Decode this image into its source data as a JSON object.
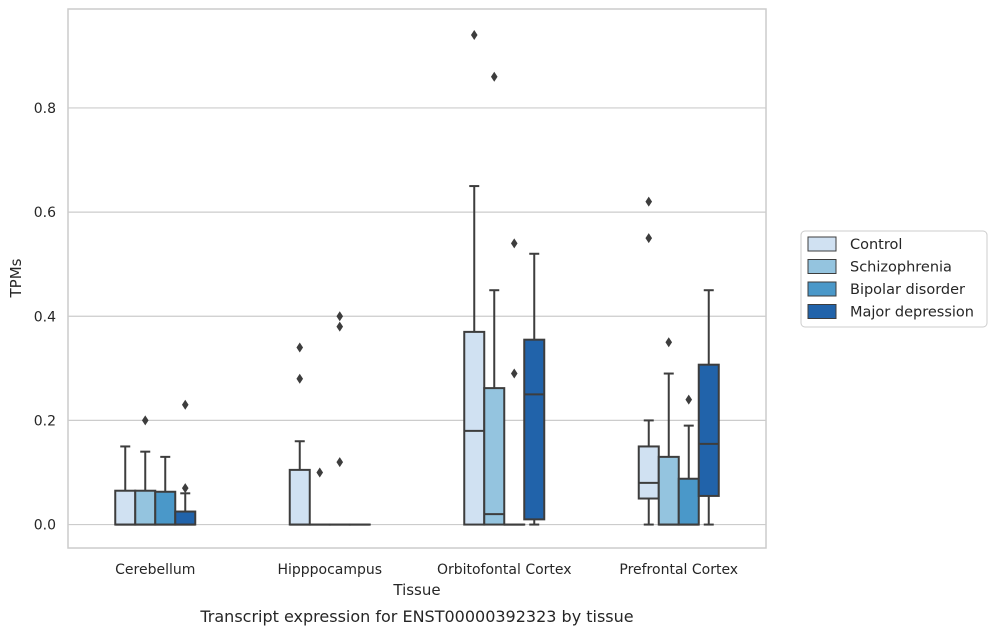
{
  "chart_data": {
    "type": "boxplot",
    "caption": "Transcript expression for ENST00000392323 by tissue",
    "xlabel": "Tissue",
    "ylabel": "TPMs",
    "ylim": [
      -0.045,
      0.99
    ],
    "yticks": [
      0.0,
      0.2,
      0.4,
      0.6,
      0.8
    ],
    "ytick_labels": [
      "0.0",
      "0.2",
      "0.4",
      "0.6",
      "0.8"
    ],
    "grid": "horizontal",
    "legend_position": "right",
    "categories": [
      "Cerebellum",
      "Hipppocampus",
      "Orbitofontal Cortex",
      "Prefrontal Cortex"
    ],
    "series": [
      {
        "name": "Control",
        "color": "#d0e1f2",
        "boxes": [
          {
            "min": 0.0,
            "q1": 0.0,
            "median": 0.0,
            "q3": 0.065,
            "max": 0.15,
            "outliers": []
          },
          {
            "min": 0.0,
            "q1": 0.0,
            "median": 0.0,
            "q3": 0.105,
            "max": 0.16,
            "outliers": [
              0.28,
              0.34
            ]
          },
          {
            "min": 0.0,
            "q1": 0.0,
            "median": 0.18,
            "q3": 0.37,
            "max": 0.65,
            "outliers": [
              0.94
            ]
          },
          {
            "min": 0.0,
            "q1": 0.05,
            "median": 0.08,
            "q3": 0.15,
            "max": 0.2,
            "outliers": [
              0.55,
              0.62
            ]
          }
        ]
      },
      {
        "name": "Schizophrenia",
        "color": "#94c4df",
        "boxes": [
          {
            "min": 0.0,
            "q1": 0.0,
            "median": 0.0,
            "q3": 0.065,
            "max": 0.14,
            "outliers": [
              0.2
            ]
          },
          {
            "min": 0.0,
            "q1": 0.0,
            "median": 0.0,
            "q3": 0.0,
            "max": 0.0,
            "outliers": [
              0.1
            ]
          },
          {
            "min": 0.0,
            "q1": 0.0,
            "median": 0.02,
            "q3": 0.262,
            "max": 0.45,
            "outliers": [
              0.86
            ]
          },
          {
            "min": 0.0,
            "q1": 0.0,
            "median": 0.0,
            "q3": 0.13,
            "max": 0.29,
            "outliers": [
              0.35
            ]
          }
        ]
      },
      {
        "name": "Bipolar disorder",
        "color": "#4a98c9",
        "boxes": [
          {
            "min": 0.0,
            "q1": 0.0,
            "median": 0.0,
            "q3": 0.063,
            "max": 0.13,
            "outliers": []
          },
          {
            "min": 0.0,
            "q1": 0.0,
            "median": 0.0,
            "q3": 0.0,
            "max": 0.0,
            "outliers": [
              0.12,
              0.38,
              0.4
            ]
          },
          {
            "min": 0.0,
            "q1": 0.0,
            "median": 0.0,
            "q3": 0.0,
            "max": 0.0,
            "outliers": [
              0.29,
              0.54
            ]
          },
          {
            "min": 0.0,
            "q1": 0.0,
            "median": 0.0,
            "q3": 0.088,
            "max": 0.19,
            "outliers": [
              0.24
            ]
          }
        ]
      },
      {
        "name": "Major depression",
        "color": "#2163aa",
        "boxes": [
          {
            "min": 0.0,
            "q1": 0.0,
            "median": 0.0,
            "q3": 0.025,
            "max": 0.06,
            "outliers": [
              0.07,
              0.23
            ]
          },
          {
            "min": 0.0,
            "q1": 0.0,
            "median": 0.0,
            "q3": 0.0,
            "max": 0.0,
            "outliers": []
          },
          {
            "min": 0.0,
            "q1": 0.01,
            "median": 0.25,
            "q3": 0.355,
            "max": 0.52,
            "outliers": []
          },
          {
            "min": 0.0,
            "q1": 0.055,
            "median": 0.155,
            "q3": 0.307,
            "max": 0.45,
            "outliers": []
          }
        ]
      }
    ]
  },
  "colors": {
    "box_edge": "#3d3d3d",
    "grid": "#cccccc",
    "frame": "#cccccc"
  }
}
